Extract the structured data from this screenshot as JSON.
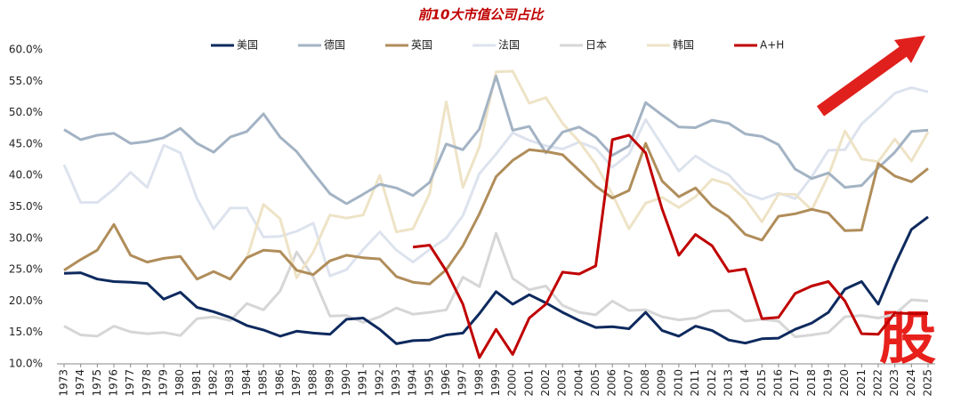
{
  "chart_data": {
    "type": "line",
    "title": "前10大市值公司占比",
    "watermark": "股",
    "categories": [
      "1973",
      "1974",
      "1975",
      "1976",
      "1977",
      "1978",
      "1979",
      "1980",
      "1981",
      "1982",
      "1983",
      "1984",
      "1985",
      "1986",
      "1987",
      "1988",
      "1989",
      "1990",
      "1991",
      "1992",
      "1993",
      "1994",
      "1995",
      "1996",
      "1997",
      "1998",
      "1999",
      "2000",
      "2001",
      "2002",
      "2003",
      "2004",
      "2005",
      "2006",
      "2007",
      "2008",
      "2009",
      "2010",
      "2011",
      "2012",
      "2013",
      "2014",
      "2015",
      "2016",
      "2017",
      "2018",
      "2019",
      "2020",
      "2021",
      "2022",
      "2023",
      "2024",
      "2025"
    ],
    "ylim": [
      10,
      60
    ],
    "yticks": [
      {
        "value": 10,
        "label": "10.0%"
      },
      {
        "value": 15,
        "label": "15.0%"
      },
      {
        "value": 20,
        "label": "20.0%"
      },
      {
        "value": 25,
        "label": "25.0%"
      },
      {
        "value": 30,
        "label": "30.0%"
      },
      {
        "value": 35,
        "label": "35.0%"
      },
      {
        "value": 40,
        "label": "40.0%"
      },
      {
        "value": 45,
        "label": "45.0%"
      },
      {
        "value": 50,
        "label": "50.0%"
      },
      {
        "value": 55,
        "label": "55.0%"
      },
      {
        "value": 60,
        "label": "60.0%"
      }
    ],
    "grid": false,
    "series": [
      {
        "name": "美国",
        "color": "#0e2a5e",
        "values": [
          24.4,
          24.5,
          23.5,
          23.1,
          23.0,
          22.8,
          20.3,
          21.4,
          19.0,
          18.3,
          17.4,
          16.1,
          15.4,
          14.4,
          15.2,
          14.9,
          14.7,
          17.1,
          17.3,
          15.5,
          13.2,
          13.7,
          13.8,
          14.6,
          14.9,
          18.0,
          21.5,
          19.5,
          21.0,
          19.7,
          18.2,
          16.9,
          15.8,
          15.9,
          15.6,
          18.2,
          15.3,
          14.4,
          16.0,
          15.3,
          13.8,
          13.3,
          14.0,
          14.1,
          15.5,
          16.5,
          18.2,
          21.9,
          23.1,
          19.5,
          25.8,
          31.4,
          33.4
        ]
      },
      {
        "name": "德国",
        "color": "#a3b3c4",
        "values": [
          47.3,
          45.7,
          46.4,
          46.7,
          45.1,
          45.4,
          46.0,
          47.5,
          45.1,
          43.7,
          46.1,
          47.0,
          49.8,
          46.1,
          43.8,
          40.4,
          37.1,
          35.5,
          37.0,
          38.6,
          38.0,
          36.8,
          38.9,
          45.0,
          44.1,
          47.4,
          55.8,
          47.2,
          47.8,
          43.6,
          46.9,
          47.7,
          46.1,
          43.2,
          44.7,
          51.6,
          49.6,
          47.7,
          47.6,
          48.8,
          48.3,
          46.6,
          46.2,
          44.9,
          41.0,
          39.5,
          40.4,
          38.1,
          38.4,
          41.2,
          43.7,
          47.0,
          47.2
        ]
      },
      {
        "name": "英国",
        "color": "#b08d5a",
        "values": [
          24.9,
          26.6,
          28.1,
          32.2,
          27.3,
          26.2,
          26.8,
          27.1,
          23.5,
          24.7,
          23.5,
          26.9,
          28.1,
          27.9,
          24.9,
          24.2,
          26.4,
          27.3,
          26.9,
          26.7,
          23.9,
          23.0,
          22.7,
          25.0,
          28.8,
          33.9,
          39.8,
          42.4,
          44.1,
          43.8,
          43.3,
          40.8,
          38.3,
          36.4,
          37.6,
          45.1,
          39.1,
          36.6,
          38.0,
          35.1,
          33.4,
          30.6,
          29.7,
          33.5,
          33.9,
          34.6,
          34.0,
          31.2,
          31.3,
          41.9,
          39.9,
          39.0,
          41.1
        ]
      },
      {
        "name": "法国",
        "color": "#dde3ee",
        "values": [
          41.7,
          35.7,
          35.7,
          37.8,
          40.5,
          38.1,
          44.8,
          43.6,
          36.3,
          31.5,
          34.8,
          34.8,
          30.2,
          30.3,
          31.1,
          32.4,
          24.0,
          25.0,
          28.2,
          31.0,
          28.1,
          26.2,
          28.2,
          30.0,
          33.6,
          40.3,
          43.4,
          46.8,
          45.6,
          44.7,
          44.2,
          45.3,
          44.3,
          41.3,
          43.4,
          48.9,
          44.8,
          40.7,
          43.1,
          41.4,
          40.1,
          37.2,
          36.2,
          37.2,
          36.3,
          39.8,
          44.0,
          44.1,
          48.2,
          50.6,
          53.1,
          54.0,
          53.3
        ]
      },
      {
        "name": "日本",
        "color": "#d6d6d6",
        "values": [
          16.0,
          14.6,
          14.4,
          16.0,
          15.1,
          14.8,
          15.0,
          14.5,
          17.2,
          17.5,
          16.9,
          19.6,
          18.6,
          21.6,
          27.8,
          23.8,
          17.6,
          17.7,
          16.6,
          17.5,
          18.9,
          17.9,
          18.2,
          18.6,
          23.8,
          22.3,
          30.8,
          23.6,
          21.8,
          22.4,
          19.3,
          18.2,
          17.8,
          20.0,
          18.5,
          18.6,
          17.5,
          17.0,
          17.3,
          18.4,
          18.5,
          16.8,
          17.1,
          16.8,
          14.3,
          14.6,
          15.0,
          17.5,
          17.7,
          17.3,
          17.9,
          20.2,
          20.0
        ]
      },
      {
        "name": "韩国",
        "color": "#eee3c6",
        "values": [
          null,
          null,
          null,
          null,
          null,
          null,
          null,
          null,
          null,
          null,
          null,
          26.8,
          35.4,
          33.1,
          23.7,
          27.8,
          33.7,
          33.2,
          33.7,
          40.0,
          31.0,
          31.5,
          37.1,
          51.7,
          38.1,
          44.6,
          56.5,
          56.6,
          51.5,
          52.4,
          48.3,
          45.4,
          41.8,
          37.0,
          31.5,
          35.6,
          36.5,
          34.9,
          36.6,
          39.4,
          38.6,
          36.2,
          32.6,
          37.0,
          37.0,
          34.5,
          40.0,
          47.1,
          42.6,
          42.2,
          45.8,
          42.3,
          46.9
        ]
      },
      {
        "name": "A+H",
        "color": "#c00000",
        "values": [
          null,
          null,
          null,
          null,
          null,
          null,
          null,
          null,
          null,
          null,
          null,
          null,
          null,
          null,
          null,
          null,
          null,
          null,
          null,
          null,
          null,
          28.6,
          28.9,
          24.8,
          19.5,
          11.0,
          15.5,
          11.5,
          17.3,
          19.5,
          24.6,
          24.3,
          25.6,
          45.7,
          46.4,
          43.6,
          34.6,
          27.3,
          30.6,
          28.8,
          24.7,
          25.1,
          17.2,
          17.4,
          21.2,
          22.4,
          23.1,
          20.0,
          14.8,
          14.7,
          18.1,
          18.0,
          18.0
        ]
      }
    ]
  }
}
